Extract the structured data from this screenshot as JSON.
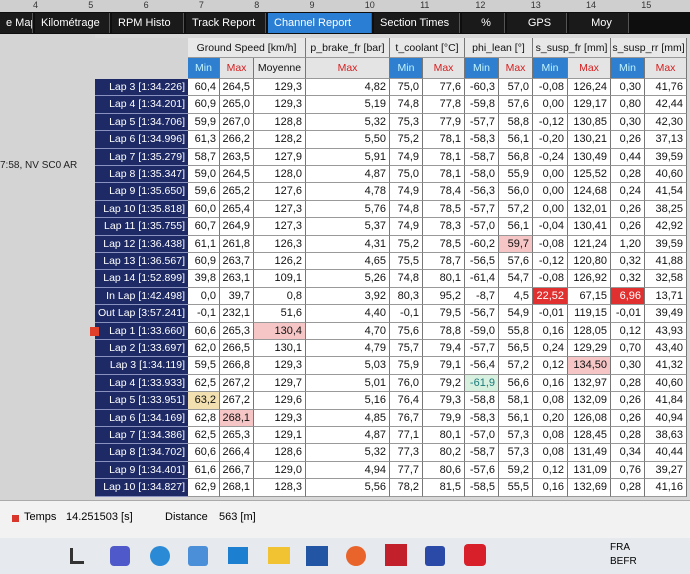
{
  "ruler": [
    "4",
    "5",
    "6",
    "7",
    "8",
    "9",
    "10",
    "11",
    "12",
    "13",
    "14",
    "15"
  ],
  "tabs": [
    "e Map",
    "Kilométrage",
    "RPM Histo",
    "Track Report",
    "Channel Report",
    "Section Times",
    "%",
    "GPS",
    "Moy"
  ],
  "side_label": "7:58, NV SC0 AR",
  "table": {
    "groups": [
      {
        "title": "Ground Speed [km/h]",
        "columns": [
          "Min",
          "Max",
          "Moyenne"
        ]
      },
      {
        "title": "p_brake_fr [bar]",
        "columns": [
          "Max"
        ]
      },
      {
        "title": "t_coolant [°C]",
        "columns": [
          "Min",
          "Max"
        ]
      },
      {
        "title": "phi_lean [°]",
        "columns": [
          "Min",
          "Max"
        ]
      },
      {
        "title": "s_susp_fr [mm]",
        "columns": [
          "Min",
          "Max"
        ]
      },
      {
        "title": "s_susp_rr [mm]",
        "columns": [
          "Min",
          "Max"
        ]
      }
    ],
    "rows": [
      {
        "label": "Lap 3  [1:34.226]",
        "cells": [
          "60,4",
          "264,5",
          "129,3",
          "4,82",
          "75,0",
          "77,6",
          "-60,3",
          "57,0",
          "-0,08",
          "126,24",
          "0,30",
          "41,76"
        ]
      },
      {
        "label": "Lap 4  [1:34.201]",
        "cells": [
          "60,9",
          "265,0",
          "129,3",
          "5,19",
          "74,8",
          "77,8",
          "-59,8",
          "57,6",
          "0,00",
          "129,17",
          "0,80",
          "42,44"
        ]
      },
      {
        "label": "Lap 5  [1:34.706]",
        "cells": [
          "59,9",
          "267,0",
          "128,8",
          "5,32",
          "75,3",
          "77,9",
          "-57,7",
          "58,8",
          "-0,12",
          "130,85",
          "0,30",
          "42,30"
        ]
      },
      {
        "label": "Lap 6  [1:34.996]",
        "cells": [
          "61,3",
          "266,2",
          "128,2",
          "5,50",
          "75,2",
          "78,1",
          "-58,3",
          "56,1",
          "-0,20",
          "130,21",
          "0,26",
          "37,13"
        ]
      },
      {
        "label": "Lap 7  [1:35.279]",
        "cells": [
          "58,7",
          "263,5",
          "127,9",
          "5,91",
          "74,9",
          "78,1",
          "-58,7",
          "56,8",
          "-0,24",
          "130,49",
          "0,44",
          "39,59"
        ]
      },
      {
        "label": "Lap 8  [1:35.347]",
        "cells": [
          "59,0",
          "264,5",
          "128,0",
          "4,87",
          "75,0",
          "78,1",
          "-58,0",
          "55,9",
          "0,00",
          "125,52",
          "0,28",
          "40,60"
        ]
      },
      {
        "label": "Lap 9  [1:35.650]",
        "cells": [
          "59,6",
          "265,2",
          "127,6",
          "4,78",
          "74,9",
          "78,4",
          "-56,3",
          "56,0",
          "0,00",
          "124,68",
          "0,24",
          "41,54"
        ]
      },
      {
        "label": "Lap 10  [1:35.818]",
        "cells": [
          "60,0",
          "265,4",
          "127,3",
          "5,76",
          "74,8",
          "78,5",
          "-57,7",
          "57,2",
          "0,00",
          "132,01",
          "0,26",
          "38,25"
        ]
      },
      {
        "label": "Lap 11  [1:35.755]",
        "cells": [
          "60,7",
          "264,9",
          "127,3",
          "5,37",
          "74,9",
          "78,3",
          "-57,0",
          "56,1",
          "-0,04",
          "130,41",
          "0,26",
          "42,92"
        ]
      },
      {
        "label": "Lap 12  [1:36.438]",
        "cells": [
          "61,1",
          "261,8",
          "126,3",
          "4,31",
          "75,2",
          "78,5",
          "-60,2",
          "59,7",
          "-0,08",
          "121,24",
          "1,20",
          "39,59"
        ]
      },
      {
        "label": "Lap 13  [1:36.567]",
        "cells": [
          "60,9",
          "263,7",
          "126,2",
          "4,65",
          "75,5",
          "78,7",
          "-56,5",
          "57,6",
          "-0,12",
          "120,80",
          "0,32",
          "41,88"
        ]
      },
      {
        "label": "Lap 14  [1:52.899]",
        "cells": [
          "39,8",
          "263,1",
          "109,1",
          "5,26",
          "74,8",
          "80,1",
          "-61,4",
          "54,7",
          "-0,08",
          "126,92",
          "0,32",
          "32,58"
        ]
      },
      {
        "label": "In Lap  [1:42.498]",
        "cells": [
          "0,0",
          "39,7",
          "0,8",
          "3,92",
          "80,3",
          "95,2",
          "-8,7",
          "4,5",
          "22,52",
          "67,15",
          "6,96",
          "13,71"
        ]
      },
      {
        "label": "Out Lap  [3:57.241]",
        "cells": [
          "-0,1",
          "232,1",
          "51,6",
          "4,40",
          "-0,1",
          "79,5",
          "-56,7",
          "54,9",
          "-0,01",
          "119,15",
          "-0,01",
          "39,49"
        ]
      },
      {
        "label": "Lap 1  [1:33.660]",
        "cells": [
          "60,6",
          "265,3",
          "130,4",
          "4,70",
          "75,6",
          "78,8",
          "-59,0",
          "55,8",
          "0,16",
          "128,05",
          "0,12",
          "43,93"
        ]
      },
      {
        "label": "Lap 2  [1:33.697]",
        "cells": [
          "62,0",
          "266,5",
          "130,1",
          "4,79",
          "75,7",
          "79,4",
          "-57,7",
          "56,5",
          "0,24",
          "129,29",
          "0,70",
          "43,40"
        ]
      },
      {
        "label": "Lap 3  [1:34.119]",
        "cells": [
          "59,5",
          "266,8",
          "129,3",
          "5,03",
          "75,9",
          "79,1",
          "-56,4",
          "57,2",
          "0,12",
          "134,50",
          "0,30",
          "41,32"
        ]
      },
      {
        "label": "Lap 4  [1:33.933]",
        "cells": [
          "62,5",
          "267,2",
          "129,7",
          "5,01",
          "76,0",
          "79,2",
          "-61,9",
          "56,6",
          "0,16",
          "132,97",
          "0,28",
          "40,60"
        ]
      },
      {
        "label": "Lap 5  [1:33.951]",
        "cells": [
          "63,2",
          "267,2",
          "129,6",
          "5,16",
          "76,4",
          "79,3",
          "-58,8",
          "58,1",
          "0,08",
          "132,09",
          "0,26",
          "41,84"
        ]
      },
      {
        "label": "Lap 6  [1:34.169]",
        "cells": [
          "62,8",
          "268,1",
          "129,3",
          "4,85",
          "76,7",
          "79,9",
          "-58,3",
          "56,1",
          "0,20",
          "126,08",
          "0,26",
          "40,94"
        ]
      },
      {
        "label": "Lap 7  [1:34.386]",
        "cells": [
          "62,5",
          "265,3",
          "129,1",
          "4,87",
          "77,1",
          "80,1",
          "-57,0",
          "57,3",
          "0,08",
          "128,45",
          "0,28",
          "38,63"
        ]
      },
      {
        "label": "Lap 8  [1:34.702]",
        "cells": [
          "60,6",
          "266,4",
          "128,6",
          "5,32",
          "77,3",
          "80,2",
          "-58,7",
          "57,3",
          "0,08",
          "131,49",
          "0,34",
          "40,44"
        ]
      },
      {
        "label": "Lap 9  [1:34.401]",
        "cells": [
          "61,6",
          "266,7",
          "129,0",
          "4,94",
          "77,7",
          "80,6",
          "-57,6",
          "59,2",
          "0,12",
          "131,09",
          "0,76",
          "39,27"
        ]
      },
      {
        "label": "Lap 10  [1:34.827]",
        "cells": [
          "62,9",
          "268,1",
          "128,3",
          "5,56",
          "78,2",
          "81,5",
          "-58,5",
          "55,5",
          "0,16",
          "132,69",
          "0,28",
          "41,16"
        ]
      }
    ]
  },
  "status": {
    "time_label": "Temps",
    "time_value": "14.251503 [s]",
    "distance_label": "Distance",
    "distance_value": "563 [m]"
  },
  "taskbar": {
    "lang": "FRA",
    "layout": "BEFR"
  }
}
